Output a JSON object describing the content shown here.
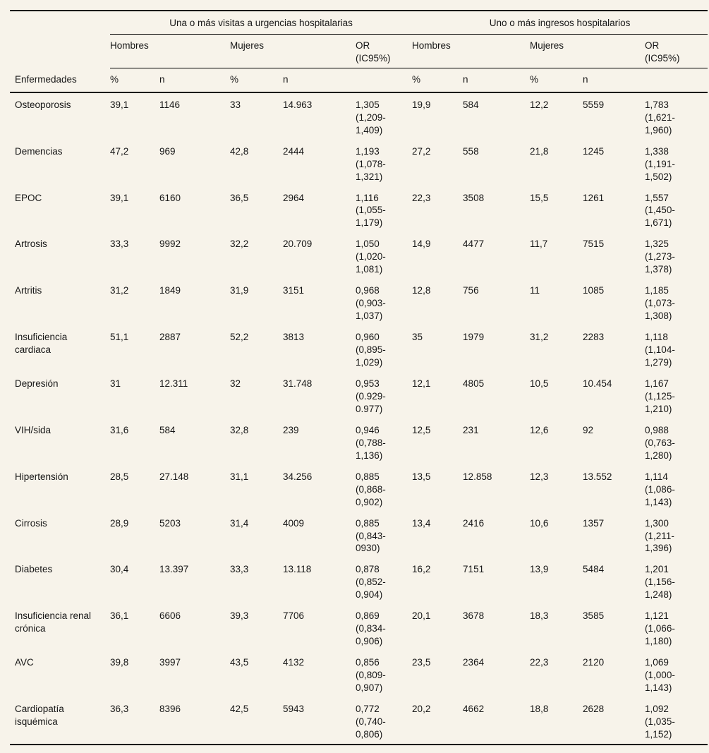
{
  "table": {
    "row_header": "Enfermedades",
    "groups": [
      {
        "label": "Una o más visitas a urgencias hospitalarias"
      },
      {
        "label": "Uno o más ingresos hospitalarios"
      }
    ],
    "subgroups": {
      "hombres": "Hombres",
      "mujeres": "Mujeres",
      "or": "OR\n(IC95%)"
    },
    "measure_labels": {
      "pct": "%",
      "n": "n"
    },
    "rows": [
      {
        "name": "Osteoporosis",
        "v": [
          "39,1",
          "1146",
          "33",
          "14.963",
          "1,305\n(1,209-\n1,409)",
          "19,9",
          "584",
          "12,2",
          "5559",
          "1,783\n(1,621-\n1,960)"
        ]
      },
      {
        "name": "Demencias",
        "v": [
          "47,2",
          "969",
          "42,8",
          "2444",
          "1,193\n(1,078-\n1,321)",
          "27,2",
          "558",
          "21,8",
          "1245",
          "1,338\n(1,191-\n1,502)"
        ]
      },
      {
        "name": "EPOC",
        "v": [
          "39,1",
          "6160",
          "36,5",
          "2964",
          "1,116\n(1,055-\n1,179)",
          "22,3",
          "3508",
          "15,5",
          "1261",
          "1,557\n(1,450-\n1,671)"
        ]
      },
      {
        "name": "Artrosis",
        "v": [
          "33,3",
          "9992",
          "32,2",
          "20.709",
          "1,050\n(1,020-\n1,081)",
          "14,9",
          "4477",
          "11,7",
          "7515",
          "1,325\n(1,273-\n1,378)"
        ]
      },
      {
        "name": "Artritis",
        "v": [
          "31,2",
          "1849",
          "31,9",
          "3151",
          "0,968\n(0,903-\n1,037)",
          "12,8",
          "756",
          "11",
          "1085",
          "1,185\n(1,073-\n1,308)"
        ]
      },
      {
        "name": "Insuficiencia cardiaca",
        "v": [
          "51,1",
          "2887",
          "52,2",
          "3813",
          "0,960\n(0,895-\n1,029)",
          "35",
          "1979",
          "31,2",
          "2283",
          "1,118\n(1,104-\n1,279)"
        ]
      },
      {
        "name": "Depresión",
        "v": [
          "31",
          "12.311",
          "32",
          "31.748",
          "0,953\n(0.929-\n0.977)",
          "12,1",
          "4805",
          "10,5",
          "10.454",
          "1,167\n(1,125-\n1,210)"
        ]
      },
      {
        "name": "VIH/sida",
        "v": [
          "31,6",
          "584",
          "32,8",
          "239",
          "0,946\n(0,788-\n1,136)",
          "12,5",
          "231",
          "12,6",
          "92",
          "0,988\n(0,763-\n1,280)"
        ]
      },
      {
        "name": "Hipertensión",
        "v": [
          "28,5",
          "27.148",
          "31,1",
          "34.256",
          "0,885\n(0,868-\n0,902)",
          "13,5",
          "12.858",
          "12,3",
          "13.552",
          "1,114\n(1,086-\n1,143)"
        ]
      },
      {
        "name": "Cirrosis",
        "v": [
          "28,9",
          "5203",
          "31,4",
          "4009",
          "0,885\n(0,843-\n0930)",
          "13,4",
          "2416",
          "10,6",
          "1357",
          "1,300\n(1,211-\n1,396)"
        ]
      },
      {
        "name": "Diabetes",
        "v": [
          "30,4",
          "13.397",
          "33,3",
          "13.118",
          "0,878\n(0,852-\n0,904)",
          "16,2",
          "7151",
          "13,9",
          "5484",
          "1,201\n(1,156-\n1,248)"
        ]
      },
      {
        "name": "Insuficiencia renal crónica",
        "v": [
          "36,1",
          "6606",
          "39,3",
          "7706",
          "0,869\n(0,834-\n0,906)",
          "20,1",
          "3678",
          "18,3",
          "3585",
          "1,121\n(1,066-\n1,180)"
        ]
      },
      {
        "name": "AVC",
        "v": [
          "39,8",
          "3997",
          "43,5",
          "4132",
          "0,856\n(0,809-\n0,907)",
          "23,5",
          "2364",
          "22,3",
          "2120",
          "1,069\n(1,000-\n1,143)"
        ]
      },
      {
        "name": "Cardiopatía isquémica",
        "v": [
          "36,3",
          "8396",
          "42,5",
          "5943",
          "0,772\n(0,740-\n0,806)",
          "20,2",
          "4662",
          "18,8",
          "2628",
          "1,092\n(1,035-\n1,152)"
        ]
      }
    ]
  }
}
